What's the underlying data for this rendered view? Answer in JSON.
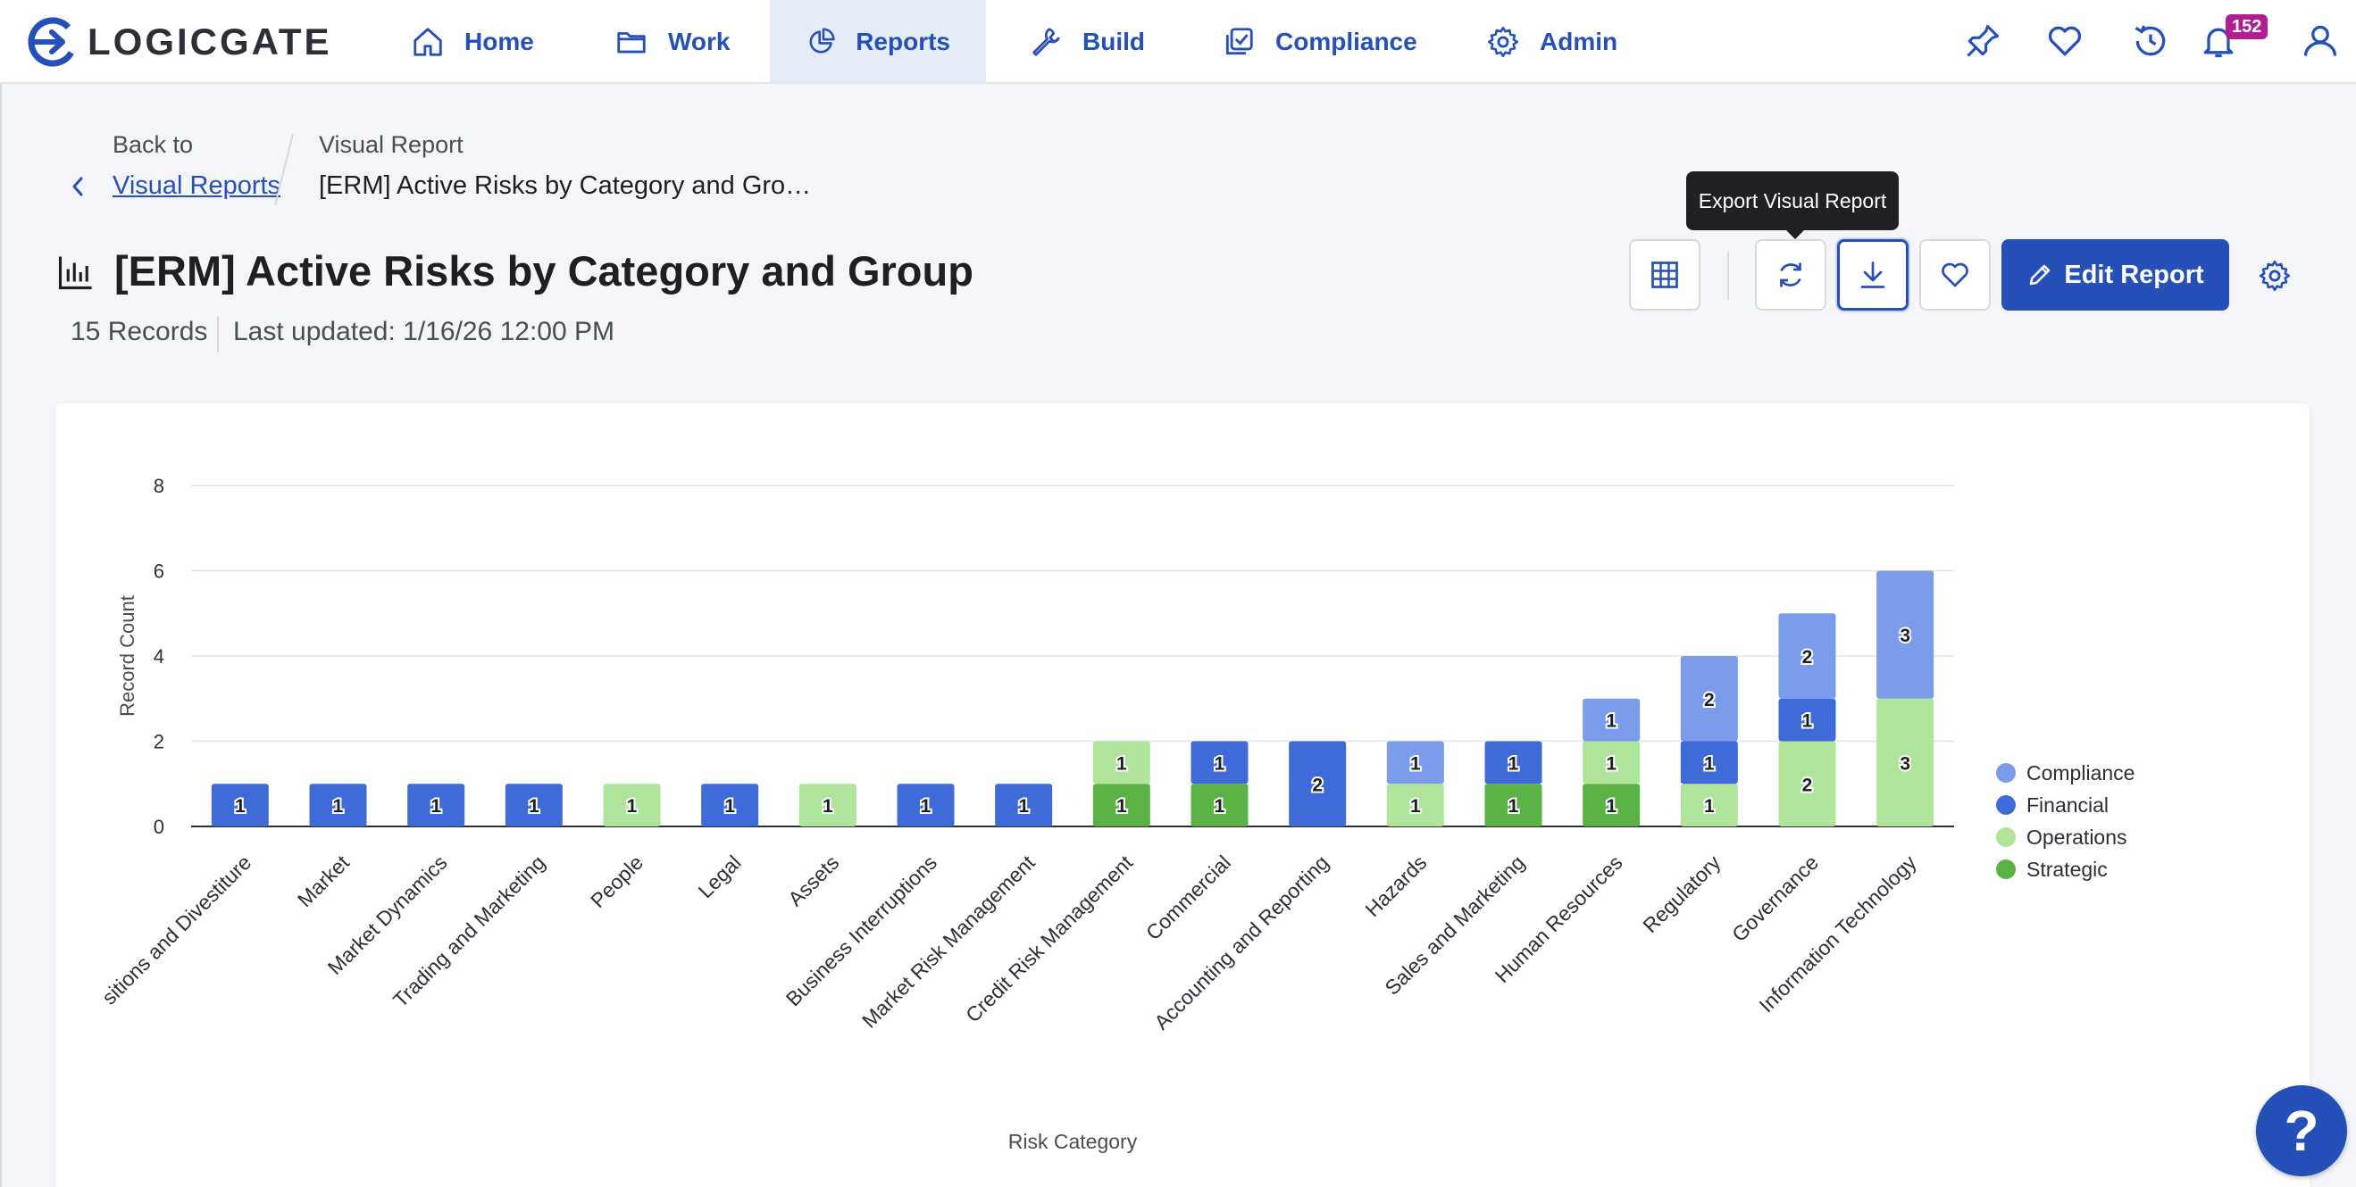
{
  "app": {
    "logo_text": "LOGICGATE"
  },
  "nav": {
    "items": [
      {
        "label": "Home",
        "icon": "home-icon"
      },
      {
        "label": "Work",
        "icon": "folder-icon"
      },
      {
        "label": "Reports",
        "icon": "pie-chart-icon",
        "active": true
      },
      {
        "label": "Build",
        "icon": "wrench-icon"
      },
      {
        "label": "Compliance",
        "icon": "compliance-icon"
      },
      {
        "label": "Admin",
        "icon": "gear-icon"
      }
    ],
    "right_icons": [
      "pin-icon",
      "heart-icon",
      "history-icon",
      "bell-icon",
      "user-icon"
    ],
    "notification_count": "152"
  },
  "breadcrumb": {
    "back_prefix": "Back to",
    "back_link": "Visual Reports",
    "current_type": "Visual Report",
    "current_title": "[ERM] Active Risks by Category and Gro…"
  },
  "page": {
    "title": "[ERM] Active Risks by Category and Group",
    "records": "15 Records",
    "last_updated": "Last updated: 1/16/26 12:00 PM"
  },
  "toolbar": {
    "tooltip": "Export Visual Report",
    "edit_label": "Edit Report",
    "buttons": [
      "table-view-icon",
      "refresh-icon",
      "download-icon",
      "heart-icon",
      "settings-icon"
    ]
  },
  "colors": {
    "accent": "#2450b8",
    "Compliance": "#7b9cea",
    "Financial": "#3f6bd9",
    "Operations": "#aee59b",
    "Strategic": "#5ab245"
  },
  "chart_data": {
    "type": "bar",
    "stacked": true,
    "xlabel": "Risk Category",
    "ylabel": "Record Count",
    "ylim": [
      0,
      8
    ],
    "yticks": [
      0,
      2,
      4,
      6,
      8
    ],
    "legend_position": "right",
    "grid": true,
    "categories": [
      "Acquisitions and Divestiture",
      "Market",
      "Market Dynamics",
      "Trading and Marketing",
      "People",
      "Legal",
      "Assets",
      "Business Interruptions",
      "Market Risk Management",
      "Credit Risk Management",
      "Commercial",
      "Accounting and Reporting",
      "Hazards",
      "Sales and Marketing",
      "Human Resources",
      "Regulatory",
      "Governance",
      "Information Technology"
    ],
    "category_display_clip": "sitions and Divestiture",
    "series": [
      {
        "name": "Strategic",
        "values": [
          0,
          0,
          0,
          0,
          0,
          0,
          0,
          0,
          0,
          1,
          1,
          0,
          0,
          1,
          1,
          0,
          0,
          0
        ]
      },
      {
        "name": "Operations",
        "values": [
          0,
          0,
          0,
          0,
          1,
          0,
          1,
          0,
          0,
          1,
          0,
          0,
          1,
          0,
          1,
          1,
          2,
          3
        ]
      },
      {
        "name": "Financial",
        "values": [
          1,
          1,
          1,
          1,
          0,
          1,
          0,
          1,
          1,
          0,
          1,
          2,
          0,
          1,
          0,
          1,
          1,
          0
        ]
      },
      {
        "name": "Compliance",
        "values": [
          0,
          0,
          0,
          0,
          0,
          0,
          0,
          0,
          0,
          0,
          0,
          0,
          1,
          0,
          1,
          2,
          2,
          3
        ]
      }
    ],
    "legend": [
      "Compliance",
      "Financial",
      "Operations",
      "Strategic"
    ]
  },
  "help": {
    "label": "?"
  }
}
